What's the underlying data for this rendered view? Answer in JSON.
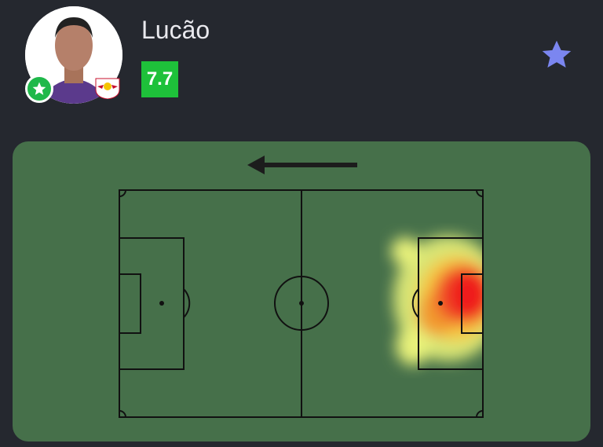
{
  "player": {
    "name": "Lucão",
    "rating": "7.7",
    "rating_color": "#1ec13a"
  },
  "icons": {
    "avatar": "player-photo",
    "badge": "star-badge-icon",
    "club": "red-bull-club-logo",
    "favorite": "star-icon",
    "direction": "arrow-left-icon"
  },
  "colors": {
    "background": "#25282f",
    "pitch": "#46704a",
    "favorite": "#7b86f0"
  }
}
